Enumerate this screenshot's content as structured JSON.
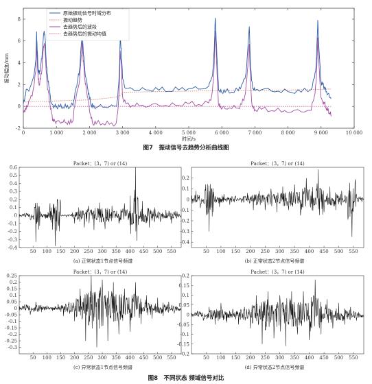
{
  "chart_data": [
    {
      "type": "line",
      "title": "",
      "xlabel": "时间/s",
      "ylabel": "振动幅度/mm",
      "xlim": [
        0,
        10000
      ],
      "ylim": [
        -2,
        9
      ],
      "x_tick_labels": [
        "0",
        "1 000",
        "2 000",
        "3 000",
        "4 000",
        "5 000",
        "6 000",
        "7 000",
        "8 000",
        "9 000",
        "10 000"
      ],
      "y_tick_labels": [
        "-2",
        "0",
        "2",
        "4",
        "6",
        "8"
      ],
      "legend_position": "top-left",
      "series": [
        {
          "name": "原始振动信号时域分布",
          "color": "#2b5fa8",
          "style": "solid",
          "x": [
            0,
            50,
            100,
            200,
            300,
            380,
            400,
            420,
            450,
            480,
            520,
            560,
            600,
            630,
            660,
            690,
            720,
            760,
            800,
            850,
            900,
            950,
            1000,
            1100,
            1200,
            1300,
            1400,
            1500,
            1550,
            1600,
            1650,
            1700,
            1750,
            1780,
            1800,
            1830,
            1860,
            1900,
            1950,
            2000,
            2050,
            2100,
            2200,
            2400,
            2600,
            2800,
            2850,
            2900,
            2930,
            2960,
            3000,
            3100,
            3300,
            3500,
            3800,
            4100,
            4400,
            4700,
            5000,
            5300,
            5600,
            5700,
            5750,
            5780,
            5800,
            5820,
            5850,
            5880,
            5900,
            5950,
            6000,
            6100,
            6300,
            6500,
            6600,
            6700,
            6750,
            6800,
            6830,
            6860,
            6900,
            6950,
            7000,
            7200,
            7500,
            7800,
            8100,
            8400,
            8700,
            8800,
            8850,
            8880,
            8900,
            8920,
            8960,
            9000,
            9050,
            9100,
            9150,
            9200,
            9250,
            9300
          ],
          "values": [
            0.2,
            0.9,
            1.5,
            1.6,
            2.5,
            4.2,
            6.8,
            5.2,
            3.4,
            3.0,
            3.6,
            4.5,
            6.2,
            7.0,
            6.3,
            4.2,
            3.0,
            2.2,
            1.2,
            0.2,
            0.0,
            0.0,
            0.0,
            0.0,
            0.0,
            0.0,
            0.0,
            0.2,
            1.0,
            1.8,
            2.5,
            3.3,
            5.5,
            6.7,
            5.6,
            4.5,
            3.2,
            2.5,
            1.6,
            0.8,
            0.2,
            0.0,
            0.0,
            0.0,
            0.0,
            0.0,
            0.6,
            3.0,
            6.2,
            5.2,
            2.5,
            1.6,
            1.6,
            1.5,
            1.6,
            1.6,
            1.5,
            1.6,
            1.7,
            1.6,
            1.8,
            2.6,
            3.8,
            6.0,
            8.0,
            7.0,
            4.6,
            3.0,
            1.6,
            1.4,
            1.4,
            1.4,
            1.4,
            1.5,
            2.0,
            2.5,
            3.6,
            6.0,
            7.2,
            4.4,
            2.3,
            1.6,
            1.5,
            1.6,
            1.5,
            1.4,
            1.4,
            1.4,
            1.6,
            2.6,
            3.8,
            6.0,
            7.8,
            6.4,
            4.0,
            2.2,
            2.0,
            1.8,
            1.4,
            1.2,
            1.0,
            0.8
          ]
        },
        {
          "name": "振动趋势",
          "color": "#e0706a",
          "style": "dotted",
          "x": [
            0,
            1000,
            2000,
            2500,
            2900,
            3000,
            4000,
            5000,
            6000,
            7000,
            8000,
            9000,
            9300
          ],
          "values": [
            0.4,
            0.5,
            0.6,
            0.75,
            0.9,
            1.3,
            1.35,
            1.4,
            1.45,
            1.5,
            1.5,
            1.55,
            1.6
          ]
        },
        {
          "name": "去趋势后的波段",
          "color": "#a24da3",
          "style": "solid",
          "x": [
            0,
            50,
            100,
            200,
            300,
            380,
            400,
            420,
            450,
            480,
            520,
            560,
            600,
            630,
            660,
            690,
            720,
            760,
            800,
            850,
            900,
            950,
            1000,
            1100,
            1200,
            1300,
            1400,
            1500,
            1550,
            1600,
            1650,
            1700,
            1750,
            1780,
            1800,
            1830,
            1860,
            1900,
            1950,
            2000,
            2050,
            2100,
            2200,
            2400,
            2600,
            2800,
            2850,
            2900,
            2930,
            2960,
            3000,
            3100,
            3300,
            3500,
            3800,
            4100,
            4400,
            4700,
            5000,
            5300,
            5600,
            5700,
            5750,
            5780,
            5800,
            5820,
            5850,
            5880,
            5900,
            5950,
            6000,
            6100,
            6300,
            6500,
            6600,
            6700,
            6750,
            6800,
            6830,
            6860,
            6900,
            6950,
            7000,
            7200,
            7500,
            7800,
            8100,
            8400,
            8700,
            8800,
            8850,
            8880,
            8900,
            8920,
            8960,
            9000,
            9050,
            9100,
            9150,
            9200,
            9250,
            9300
          ],
          "values": [
            -0.3,
            -0.5,
            0.0,
            0.5,
            1.5,
            3.2,
            5.8,
            4.3,
            2.5,
            2.0,
            2.6,
            3.4,
            5.2,
            5.9,
            5.2,
            3.2,
            2.0,
            1.2,
            0.3,
            -0.7,
            -1.3,
            -1.4,
            -1.4,
            -1.4,
            -1.4,
            -1.4,
            -1.5,
            -1.2,
            0.0,
            1.0,
            1.6,
            2.4,
            4.5,
            5.8,
            4.7,
            3.6,
            2.4,
            1.6,
            0.8,
            -0.3,
            -1.0,
            -1.5,
            -1.5,
            -1.5,
            -1.6,
            -1.6,
            -0.7,
            1.6,
            5.0,
            3.8,
            0.8,
            0.2,
            0.1,
            0.1,
            0.1,
            0.2,
            0.1,
            0.2,
            0.3,
            0.2,
            0.3,
            1.0,
            2.4,
            4.8,
            6.8,
            5.7,
            3.4,
            1.4,
            0.2,
            0.0,
            -0.1,
            -0.1,
            -0.1,
            -0.1,
            0.2,
            1.0,
            2.2,
            4.6,
            5.6,
            2.8,
            0.4,
            -0.2,
            -0.3,
            -0.2,
            -0.3,
            -0.4,
            -0.4,
            -0.4,
            -0.3,
            1.0,
            2.2,
            4.4,
            6.2,
            4.9,
            2.4,
            0.7,
            0.4,
            0.3,
            -0.1,
            -0.3,
            -0.5,
            -0.8
          ]
        },
        {
          "name": "去趋势后的振动均值",
          "color": "#c85a95",
          "style": "dotted",
          "x": [
            0,
            9300
          ],
          "values": [
            0.0,
            0.0
          ]
        }
      ]
    },
    {
      "type": "line",
      "title": "Packet：(3，7) or (14)",
      "xlim": [
        0,
        585
      ],
      "ylim": [
        -0.4,
        0.6
      ],
      "x_tick_labels": [
        "50",
        "100",
        "150",
        "200",
        "250",
        "300",
        "350",
        "400",
        "450",
        "500",
        "550"
      ],
      "y_tick_labels": [
        "-0.4",
        "-0.3",
        "-0.2",
        "-0.1",
        "0",
        "0.1",
        "0.2",
        "0.3",
        "0.4",
        "0.5",
        "0.6"
      ],
      "x": [
        0,
        20,
        40,
        55,
        60,
        75,
        95,
        110,
        130,
        150,
        170,
        190,
        200,
        215,
        235,
        250,
        270,
        290,
        310,
        335,
        360,
        380,
        400,
        420,
        430,
        445,
        470,
        490,
        510,
        530,
        550,
        570,
        585
      ],
      "values": [
        0.0,
        0.03,
        -0.05,
        0.1,
        -0.33,
        0.05,
        -0.04,
        0.08,
        -0.38,
        0.0,
        -0.02,
        0.02,
        -0.1,
        0.1,
        -0.15,
        0.12,
        -0.18,
        0.16,
        -0.17,
        0.12,
        -0.1,
        0.15,
        -0.12,
        0.6,
        -0.12,
        0.18,
        -0.15,
        0.1,
        -0.08,
        0.07,
        -0.1,
        0.05,
        0.0
      ]
    },
    {
      "type": "line",
      "title": "Packet：(3，7) or (14)",
      "xlim": [
        0,
        585
      ],
      "ylim": [
        -0.45,
        0.3
      ],
      "x_tick_labels": [
        "50",
        "100",
        "150",
        "200",
        "250",
        "300",
        "350",
        "400",
        "450",
        "500",
        "550"
      ],
      "y_tick_labels": [
        "-0.4",
        "-0.3",
        "-0.2",
        "-0.1",
        "0",
        "0.1",
        "0.2"
      ],
      "x": [
        0,
        15,
        30,
        45,
        60,
        75,
        95,
        110,
        130,
        150,
        170,
        190,
        210,
        230,
        250,
        270,
        290,
        310,
        330,
        350,
        370,
        390,
        410,
        430,
        450,
        470,
        490,
        510,
        530,
        545,
        560,
        585
      ],
      "values": [
        0.0,
        0.08,
        -0.08,
        0.06,
        -0.3,
        0.07,
        -0.07,
        0.05,
        -0.05,
        0.03,
        -0.03,
        0.06,
        -0.1,
        0.08,
        -0.1,
        0.1,
        -0.12,
        0.12,
        -0.1,
        0.14,
        -0.15,
        0.2,
        -0.1,
        0.28,
        -0.12,
        0.12,
        -0.1,
        0.08,
        -0.08,
        -0.35,
        0.05,
        0.0
      ]
    },
    {
      "type": "line",
      "title": "Packet：(3，7) or (14)",
      "xlim": [
        0,
        585
      ],
      "ylim": [
        -0.35,
        0.25
      ],
      "x_tick_labels": [
        "50",
        "100",
        "150",
        "200",
        "250",
        "300",
        "350",
        "400",
        "450",
        "500",
        "550"
      ],
      "y_tick_labels": [
        "-0.3",
        "-0.25",
        "-0.2",
        "-0.15",
        "-0.1",
        "-0.05",
        "0",
        "0.05",
        "0.1",
        "0.15",
        "0.2",
        "0.25"
      ],
      "x": [
        0,
        20,
        40,
        60,
        80,
        100,
        120,
        140,
        160,
        180,
        200,
        220,
        240,
        260,
        280,
        300,
        320,
        340,
        360,
        380,
        400,
        420,
        440,
        460,
        480,
        500,
        520,
        540,
        560,
        585
      ],
      "values": [
        0.0,
        0.03,
        -0.05,
        0.05,
        -0.03,
        0.02,
        -0.02,
        0.03,
        -0.06,
        0.05,
        -0.1,
        0.15,
        -0.25,
        0.25,
        -0.3,
        0.22,
        -0.25,
        0.2,
        -0.2,
        0.15,
        -0.18,
        0.2,
        -0.12,
        0.1,
        -0.08,
        0.08,
        -0.06,
        0.05,
        -0.04,
        0.0
      ]
    },
    {
      "type": "line",
      "title": "Packet：(3，7) or (14)",
      "xlim": [
        0,
        585
      ],
      "ylim": [
        -0.2,
        0.2
      ],
      "x_tick_labels": [
        "50",
        "100",
        "150",
        "200",
        "250",
        "300",
        "350",
        "400",
        "450",
        "500",
        "550"
      ],
      "y_tick_labels": [
        "-0.2",
        "-0.15",
        "-0.1",
        "-0.05",
        "0",
        "0.05",
        "0.1",
        "0.15",
        "0.2"
      ],
      "x": [
        0,
        20,
        40,
        60,
        80,
        100,
        120,
        140,
        160,
        180,
        200,
        220,
        240,
        260,
        280,
        300,
        320,
        340,
        360,
        380,
        400,
        420,
        440,
        460,
        480,
        500,
        520,
        540,
        560,
        585
      ],
      "values": [
        0.0,
        0.02,
        -0.03,
        0.04,
        -0.05,
        0.06,
        -0.04,
        0.03,
        -0.05,
        0.04,
        -0.07,
        0.1,
        -0.15,
        0.12,
        -0.12,
        0.1,
        -0.16,
        0.12,
        -0.1,
        0.12,
        -0.13,
        0.18,
        -0.1,
        0.08,
        -0.07,
        0.06,
        -0.05,
        0.04,
        -0.03,
        0.0
      ]
    }
  ],
  "captions": {
    "fig7": "图7　振动信号去趋势分析曲线图",
    "fig8": "图8　不同状态 频域信号对比",
    "panel_a": "(a) 正常状态1节点信号频谱",
    "panel_b": "(b) 正常状态2节点信号频谱",
    "panel_c": "(c) 异常状态1节点信号频谱",
    "panel_d": "(d) 异常状态2节点信号频谱"
  }
}
